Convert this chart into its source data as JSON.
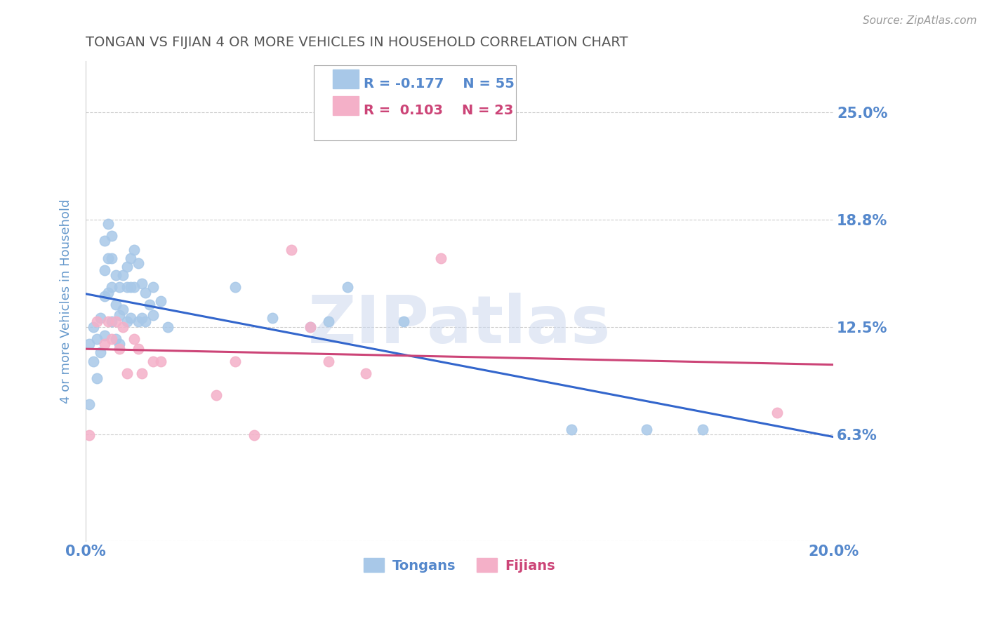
{
  "title": "TONGAN VS FIJIAN 4 OR MORE VEHICLES IN HOUSEHOLD CORRELATION CHART",
  "source": "Source: ZipAtlas.com",
  "ylabel": "4 or more Vehicles in Household",
  "watermark": "ZIPatlas",
  "xmin": 0.0,
  "xmax": 0.2,
  "ymin": 0.0,
  "ymax": 0.28,
  "yticks": [
    0.0,
    0.0625,
    0.125,
    0.1875,
    0.25
  ],
  "ytick_labels": [
    "",
    "6.3%",
    "12.5%",
    "18.8%",
    "25.0%"
  ],
  "xticks": [
    0.0,
    0.025,
    0.05,
    0.075,
    0.1,
    0.125,
    0.15,
    0.175,
    0.2
  ],
  "xtick_labels": [
    "0.0%",
    "",
    "",
    "",
    "",
    "",
    "",
    "",
    "20.0%"
  ],
  "legend_tongan_R": "-0.177",
  "legend_tongan_N": "55",
  "legend_fijian_R": "0.103",
  "legend_fijian_N": "23",
  "tongan_color": "#a8c8e8",
  "fijian_color": "#f4b0c8",
  "tongan_line_color": "#3366cc",
  "fijian_line_color": "#cc4477",
  "title_color": "#555555",
  "axis_label_color": "#6699cc",
  "tick_color": "#5588cc",
  "grid_color": "#cccccc",
  "tongan_x": [
    0.001,
    0.001,
    0.002,
    0.002,
    0.003,
    0.003,
    0.004,
    0.004,
    0.005,
    0.005,
    0.005,
    0.005,
    0.006,
    0.006,
    0.006,
    0.007,
    0.007,
    0.007,
    0.007,
    0.008,
    0.008,
    0.008,
    0.009,
    0.009,
    0.009,
    0.01,
    0.01,
    0.011,
    0.011,
    0.011,
    0.012,
    0.012,
    0.012,
    0.013,
    0.013,
    0.014,
    0.014,
    0.015,
    0.015,
    0.016,
    0.016,
    0.017,
    0.018,
    0.018,
    0.02,
    0.022,
    0.04,
    0.05,
    0.06,
    0.065,
    0.07,
    0.085,
    0.13,
    0.15,
    0.165
  ],
  "tongan_y": [
    0.115,
    0.08,
    0.125,
    0.105,
    0.118,
    0.095,
    0.13,
    0.11,
    0.175,
    0.158,
    0.143,
    0.12,
    0.185,
    0.165,
    0.145,
    0.178,
    0.165,
    0.148,
    0.128,
    0.155,
    0.138,
    0.118,
    0.148,
    0.132,
    0.115,
    0.155,
    0.135,
    0.16,
    0.148,
    0.128,
    0.165,
    0.148,
    0.13,
    0.17,
    0.148,
    0.162,
    0.128,
    0.15,
    0.13,
    0.145,
    0.128,
    0.138,
    0.148,
    0.132,
    0.14,
    0.125,
    0.148,
    0.13,
    0.125,
    0.128,
    0.148,
    0.128,
    0.065,
    0.065,
    0.065
  ],
  "fijian_x": [
    0.001,
    0.003,
    0.005,
    0.006,
    0.007,
    0.008,
    0.009,
    0.01,
    0.011,
    0.013,
    0.014,
    0.015,
    0.018,
    0.02,
    0.035,
    0.04,
    0.045,
    0.055,
    0.06,
    0.065,
    0.075,
    0.095,
    0.185
  ],
  "fijian_y": [
    0.062,
    0.128,
    0.115,
    0.128,
    0.118,
    0.128,
    0.112,
    0.125,
    0.098,
    0.118,
    0.112,
    0.098,
    0.105,
    0.105,
    0.085,
    0.105,
    0.062,
    0.17,
    0.125,
    0.105,
    0.098,
    0.165,
    0.075
  ],
  "background_color": "#ffffff"
}
